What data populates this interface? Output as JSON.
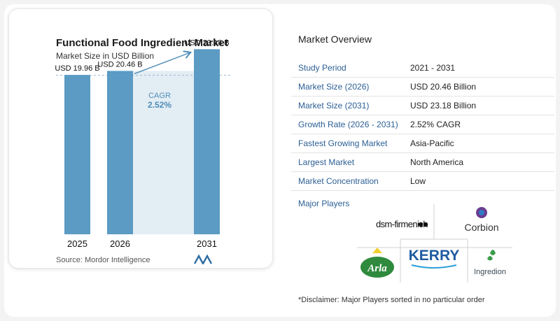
{
  "chart_data": {
    "type": "bar",
    "title": "Functional Food Ingredient Market",
    "subtitle": "Market Size in USD Billion",
    "categories": [
      "2025",
      "2026",
      "2031"
    ],
    "values": [
      19.96,
      20.46,
      23.18
    ],
    "value_labels": [
      "USD 19.96 B",
      "USD 20.46 B",
      "USD 23.18 B"
    ],
    "cagr_label": "CAGR",
    "cagr_value": "2.52%",
    "ylim": [
      0,
      24
    ],
    "bar_color": "#5b9bc4"
  },
  "source": "Source:  Mordor Intelligence",
  "overview": {
    "title": "Market Overview",
    "rows": [
      {
        "label": "Study Period",
        "value": "2021 - 2031"
      },
      {
        "label": "Market Size (2026)",
        "value": "USD 20.46 Billion"
      },
      {
        "label": "Market Size (2031)",
        "value": "USD 23.18 Billion"
      },
      {
        "label": "Growth Rate (2026 - 2031)",
        "value": "2.52% CAGR"
      },
      {
        "label": "Fastest Growing Market",
        "value": "Asia-Pacific"
      },
      {
        "label": "Largest Market",
        "value": "North America"
      },
      {
        "label": "Market Concentration",
        "value": "Low"
      }
    ]
  },
  "players": {
    "title": "Major Players",
    "logos": {
      "dsm": "dsm-firmenich",
      "corbion": "Corbion",
      "arla": "Arla",
      "kerry": "KERRY",
      "ingredion": "Ingredion"
    }
  },
  "disclaimer": "*Disclaimer: Major Players sorted in no particular order"
}
